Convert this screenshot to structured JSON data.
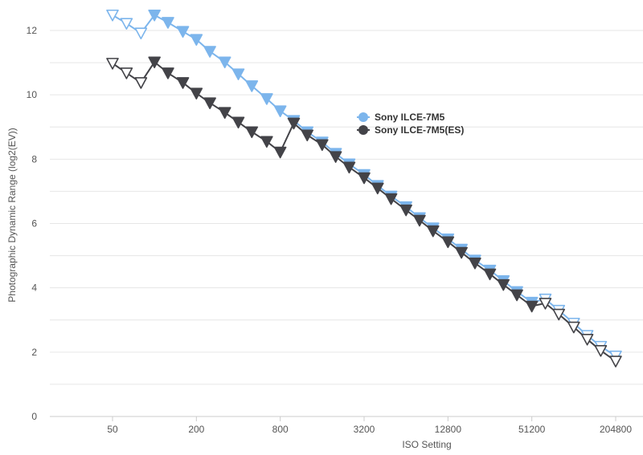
{
  "chart_data": {
    "type": "line",
    "title": "",
    "xlabel": "ISO Setting",
    "ylabel": "Photographic Dynamic Range (log2(EV))",
    "x_scale": "log2",
    "xlim": [
      25,
      262144
    ],
    "ylim": [
      0,
      12.5
    ],
    "x_ticks": [
      50,
      200,
      800,
      3200,
      12800,
      51200,
      204800
    ],
    "x_tick_labels": [
      "50",
      "200",
      "800",
      "3200",
      "12800",
      "51200",
      "204800"
    ],
    "y_ticks": [
      0,
      2,
      4,
      6,
      8,
      10,
      12
    ],
    "y_tick_labels": [
      "0",
      "2",
      "4",
      "6",
      "8",
      "10",
      "12"
    ],
    "grid": "horizontal",
    "legend_position": "center-right",
    "series": [
      {
        "name": "Sony ILCE-7M5",
        "color": "#7cb5ec",
        "points": [
          {
            "iso": 50,
            "dr": 12.48,
            "filled": false
          },
          {
            "iso": 63,
            "dr": 12.22,
            "filled": false
          },
          {
            "iso": 80,
            "dr": 11.92,
            "filled": false
          },
          {
            "iso": 100,
            "dr": 12.48,
            "filled": true
          },
          {
            "iso": 125,
            "dr": 12.25,
            "filled": true
          },
          {
            "iso": 160,
            "dr": 11.97,
            "filled": true
          },
          {
            "iso": 200,
            "dr": 11.72,
            "filled": true
          },
          {
            "iso": 250,
            "dr": 11.35,
            "filled": true
          },
          {
            "iso": 320,
            "dr": 11.02,
            "filled": true
          },
          {
            "iso": 400,
            "dr": 10.65,
            "filled": true
          },
          {
            "iso": 500,
            "dr": 10.28,
            "filled": true
          },
          {
            "iso": 640,
            "dr": 9.88,
            "filled": true
          },
          {
            "iso": 800,
            "dr": 9.5,
            "filled": true
          },
          {
            "iso": 1000,
            "dr": 9.2,
            "filled": true
          },
          {
            "iso": 1250,
            "dr": 8.85,
            "filled": true
          },
          {
            "iso": 1600,
            "dr": 8.53,
            "filled": true
          },
          {
            "iso": 2000,
            "dr": 8.18,
            "filled": true
          },
          {
            "iso": 2500,
            "dr": 7.85,
            "filled": true
          },
          {
            "iso": 3200,
            "dr": 7.52,
            "filled": true
          },
          {
            "iso": 4000,
            "dr": 7.18,
            "filled": true
          },
          {
            "iso": 5000,
            "dr": 6.85,
            "filled": true
          },
          {
            "iso": 6400,
            "dr": 6.52,
            "filled": true
          },
          {
            "iso": 8000,
            "dr": 6.18,
            "filled": true
          },
          {
            "iso": 10000,
            "dr": 5.86,
            "filled": true
          },
          {
            "iso": 12800,
            "dr": 5.52,
            "filled": true
          },
          {
            "iso": 16000,
            "dr": 5.2,
            "filled": true
          },
          {
            "iso": 20000,
            "dr": 4.86,
            "filled": true
          },
          {
            "iso": 25600,
            "dr": 4.55,
            "filled": true
          },
          {
            "iso": 32000,
            "dr": 4.22,
            "filled": true
          },
          {
            "iso": 40000,
            "dr": 3.88,
            "filled": true
          },
          {
            "iso": 51200,
            "dr": 3.55,
            "filled": true
          },
          {
            "iso": 64000,
            "dr": 3.65,
            "filled": false
          },
          {
            "iso": 80000,
            "dr": 3.3,
            "filled": false
          },
          {
            "iso": 102400,
            "dr": 2.9,
            "filled": false
          },
          {
            "iso": 128000,
            "dr": 2.52,
            "filled": false
          },
          {
            "iso": 160000,
            "dr": 2.18,
            "filled": false
          },
          {
            "iso": 204800,
            "dr": 1.88,
            "filled": false
          }
        ]
      },
      {
        "name": "Sony ILCE-7M5(ES)",
        "color": "#434348",
        "points": [
          {
            "iso": 50,
            "dr": 10.98,
            "filled": false
          },
          {
            "iso": 63,
            "dr": 10.68,
            "filled": false
          },
          {
            "iso": 80,
            "dr": 10.38,
            "filled": false
          },
          {
            "iso": 100,
            "dr": 11.02,
            "filled": true
          },
          {
            "iso": 125,
            "dr": 10.68,
            "filled": true
          },
          {
            "iso": 160,
            "dr": 10.38,
            "filled": true
          },
          {
            "iso": 200,
            "dr": 10.05,
            "filled": true
          },
          {
            "iso": 250,
            "dr": 9.75,
            "filled": true
          },
          {
            "iso": 320,
            "dr": 9.45,
            "filled": true
          },
          {
            "iso": 400,
            "dr": 9.15,
            "filled": true
          },
          {
            "iso": 500,
            "dr": 8.85,
            "filled": true
          },
          {
            "iso": 640,
            "dr": 8.55,
            "filled": true
          },
          {
            "iso": 800,
            "dr": 8.22,
            "filled": true
          },
          {
            "iso": 1000,
            "dr": 9.12,
            "filled": true
          },
          {
            "iso": 1250,
            "dr": 8.75,
            "filled": true
          },
          {
            "iso": 1600,
            "dr": 8.45,
            "filled": true
          },
          {
            "iso": 2000,
            "dr": 8.08,
            "filled": true
          },
          {
            "iso": 2500,
            "dr": 7.75,
            "filled": true
          },
          {
            "iso": 3200,
            "dr": 7.42,
            "filled": true
          },
          {
            "iso": 4000,
            "dr": 7.1,
            "filled": true
          },
          {
            "iso": 5000,
            "dr": 6.77,
            "filled": true
          },
          {
            "iso": 6400,
            "dr": 6.42,
            "filled": true
          },
          {
            "iso": 8000,
            "dr": 6.1,
            "filled": true
          },
          {
            "iso": 10000,
            "dr": 5.77,
            "filled": true
          },
          {
            "iso": 12800,
            "dr": 5.43,
            "filled": true
          },
          {
            "iso": 16000,
            "dr": 5.1,
            "filled": true
          },
          {
            "iso": 20000,
            "dr": 4.77,
            "filled": true
          },
          {
            "iso": 25600,
            "dr": 4.43,
            "filled": true
          },
          {
            "iso": 32000,
            "dr": 4.1,
            "filled": true
          },
          {
            "iso": 40000,
            "dr": 3.78,
            "filled": true
          },
          {
            "iso": 51200,
            "dr": 3.43,
            "filled": true
          },
          {
            "iso": 64000,
            "dr": 3.52,
            "filled": false
          },
          {
            "iso": 80000,
            "dr": 3.18,
            "filled": false
          },
          {
            "iso": 102400,
            "dr": 2.78,
            "filled": false
          },
          {
            "iso": 128000,
            "dr": 2.4,
            "filled": false
          },
          {
            "iso": 160000,
            "dr": 2.05,
            "filled": false
          },
          {
            "iso": 204800,
            "dr": 1.72,
            "filled": false
          }
        ]
      }
    ]
  }
}
